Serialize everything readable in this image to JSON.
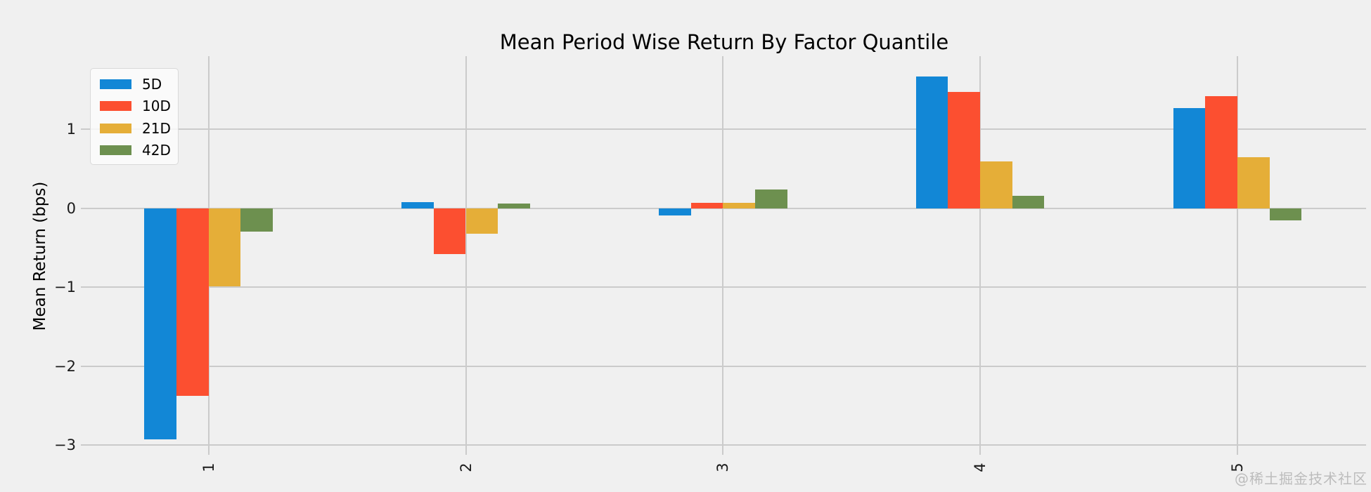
{
  "chart_data": {
    "type": "bar",
    "title": "Mean Period Wise Return By Factor Quantile",
    "xlabel": "",
    "ylabel": "Mean Return (bps)",
    "categories": [
      "1",
      "2",
      "3",
      "4",
      "5"
    ],
    "series": [
      {
        "name": "5D",
        "color": "#1287d6",
        "values": [
          -2.93,
          0.08,
          -0.09,
          1.67,
          1.27
        ]
      },
      {
        "name": "10D",
        "color": "#fc4f30",
        "values": [
          -2.38,
          -0.58,
          0.07,
          1.47,
          1.42
        ]
      },
      {
        "name": "21D",
        "color": "#e5ae38",
        "values": [
          -0.99,
          -0.32,
          0.07,
          0.59,
          0.65
        ]
      },
      {
        "name": "42D",
        "color": "#6d904f",
        "values": [
          -0.3,
          0.06,
          0.24,
          0.16,
          -0.15
        ]
      }
    ],
    "yticks": [
      1,
      0,
      -1,
      -2,
      -3
    ],
    "ylim": [
      -3.1,
      1.93
    ],
    "xlim": [
      0.5,
      5.5
    ],
    "grid": true,
    "legend_position": "upper left"
  },
  "watermark": {
    "text": "@稀土掘金技术社区"
  },
  "colors": {
    "background": "#f0f0f0",
    "grid": "#cbcbcb",
    "title_text": "#000000",
    "tick_text": "#1a1a1a",
    "watermark_text": "#bcbcbc"
  }
}
